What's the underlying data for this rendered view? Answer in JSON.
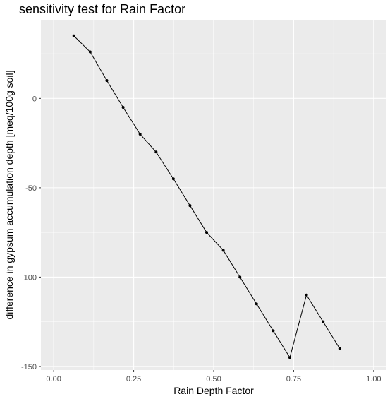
{
  "chart_data": {
    "type": "line",
    "title": "sensitivity test for Rain Factor",
    "xlabel": "Rain Depth Factor",
    "ylabel": "difference in gypsum accumulation depth [meq/100g soil]",
    "xlim": [
      -0.04,
      1.04
    ],
    "ylim": [
      -152,
      44
    ],
    "x_ticks": [
      0.0,
      0.25,
      0.5,
      0.75,
      1.0
    ],
    "x_tick_labels": [
      "0.00",
      "0.25",
      "0.50",
      "0.75",
      "1.00"
    ],
    "y_ticks": [
      -150,
      -100,
      -50,
      0
    ],
    "y_tick_labels": [
      "-150",
      "-100",
      "-50",
      "0"
    ],
    "grid": true,
    "background": "#ebebeb",
    "line_color": "#000000",
    "series": [
      {
        "x": [
          0.063,
          0.114,
          0.166,
          0.217,
          0.27,
          0.32,
          0.374,
          0.426,
          0.478,
          0.53,
          0.582,
          0.634,
          0.686,
          0.738,
          0.79,
          0.842,
          0.894
        ],
        "y": [
          35,
          26,
          10,
          -5,
          -20,
          -30,
          -45,
          -60,
          -75,
          -85,
          -100,
          -115,
          -130,
          -145,
          -110,
          -125,
          -140
        ]
      }
    ]
  }
}
